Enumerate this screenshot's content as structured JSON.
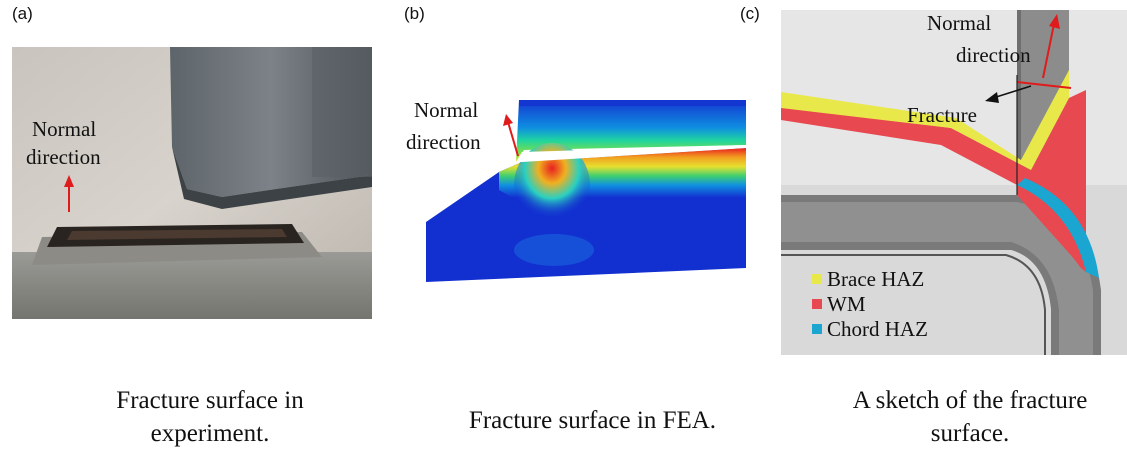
{
  "panels": {
    "a": {
      "letter": "(a)",
      "annotation_line1": "Normal",
      "annotation_line2": "direction",
      "caption_line1": "Fracture surface in",
      "caption_line2": "experiment."
    },
    "b": {
      "letter": "(b)",
      "annotation_line1": "Normal",
      "annotation_line2": "direction",
      "caption": "Fracture surface in FEA."
    },
    "c": {
      "letter": "(c)",
      "annotation_line1": "Normal",
      "annotation_line2": "direction",
      "fracture_label": "Fracture",
      "legend": [
        {
          "label": "Brace HAZ",
          "color": "#e9e84a"
        },
        {
          "label": "WM",
          "color": "#e8484f"
        },
        {
          "label": "Chord HAZ",
          "color": "#1aa6d0"
        }
      ],
      "caption_line1": "A sketch of the fracture",
      "caption_line2": "surface."
    }
  },
  "colors": {
    "arrow_red": "#e01b1b",
    "arrow_black": "#111111"
  }
}
